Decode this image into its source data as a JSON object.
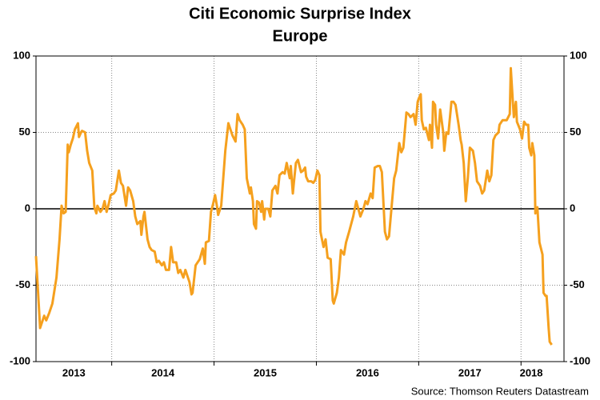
{
  "chart_data": {
    "type": "line",
    "title": "Citi Economic Surprise Index",
    "subtitle": "Europe",
    "source": "Source: Thomson Reuters Datastream",
    "color": "#f5a01e",
    "xlim": [
      2013.26,
      2018.42
    ],
    "xticks": [
      {
        "value": 2013.63,
        "label": "2013"
      },
      {
        "value": 2014.5,
        "label": "2014"
      },
      {
        "value": 2015.5,
        "label": "2015"
      },
      {
        "value": 2016.5,
        "label": "2016"
      },
      {
        "value": 2017.5,
        "label": "2017"
      },
      {
        "value": 2018.1,
        "label": "2018"
      }
    ],
    "year_lines": [
      2014,
      2015,
      2016,
      2017,
      2018
    ],
    "ylim": [
      -100,
      100
    ],
    "yticks": [
      -100,
      -50,
      0,
      50,
      100
    ],
    "y2lim": [
      -100,
      100
    ],
    "y2ticks": [
      -100,
      -50,
      0,
      50,
      100
    ],
    "grid": true,
    "x": [
      2013.26,
      2013.3,
      2013.34,
      2013.36,
      2013.39,
      2013.42,
      2013.46,
      2013.49,
      2013.51,
      2013.53,
      2013.55,
      2013.57,
      2013.58,
      2013.6,
      2013.62,
      2013.64,
      2013.67,
      2013.68,
      2013.7,
      2013.71,
      2013.74,
      2013.76,
      2013.78,
      2013.81,
      2013.83,
      2013.85,
      2013.86,
      2013.89,
      2013.91,
      2013.93,
      2013.95,
      2013.97,
      2013.99,
      2014.02,
      2014.04,
      2014.07,
      2014.09,
      2014.11,
      2014.14,
      2014.16,
      2014.18,
      2014.21,
      2014.23,
      2014.25,
      2014.28,
      2014.29,
      2014.31,
      2014.32,
      2014.35,
      2014.37,
      2014.39,
      2014.42,
      2014.44,
      2014.46,
      2014.49,
      2014.51,
      2014.53,
      2014.56,
      2014.58,
      2014.6,
      2014.63,
      2014.65,
      2014.67,
      2014.7,
      2014.72,
      2014.74,
      2014.76,
      2014.78,
      2014.79,
      2014.82,
      2014.84,
      2014.86,
      2014.89,
      2014.91,
      2014.92,
      2014.95,
      2014.97,
      2014.99,
      2015.01,
      2015.03,
      2015.04,
      2015.07,
      2015.09,
      2015.11,
      2015.14,
      2015.16,
      2015.18,
      2015.21,
      2015.23,
      2015.25,
      2015.28,
      2015.3,
      2015.32,
      2015.35,
      2015.36,
      2015.38,
      2015.39,
      2015.41,
      2015.42,
      2015.44,
      2015.46,
      2015.47,
      2015.49,
      2015.5,
      2015.53,
      2015.55,
      2015.57,
      2015.6,
      2015.62,
      2015.64,
      2015.67,
      2015.69,
      2015.71,
      2015.74,
      2015.75,
      2015.77,
      2015.78,
      2015.8,
      2015.82,
      2015.85,
      2015.87,
      2015.89,
      2015.9,
      2015.92,
      2015.95,
      2015.97,
      2015.99,
      2016.01,
      2016.03,
      2016.04,
      2016.07,
      2016.09,
      2016.11,
      2016.14,
      2016.16,
      2016.17,
      2016.2,
      2016.22,
      2016.24,
      2016.27,
      2016.29,
      2016.32,
      2016.34,
      2016.36,
      2016.39,
      2016.41,
      2016.43,
      2016.46,
      2016.48,
      2016.5,
      2016.53,
      2016.55,
      2016.57,
      2016.6,
      2016.62,
      2016.64,
      2016.67,
      2016.69,
      2016.71,
      2016.74,
      2016.76,
      2016.78,
      2016.81,
      2016.83,
      2016.85,
      2016.88,
      2016.9,
      2016.92,
      2016.95,
      2016.97,
      2016.99,
      2017.0,
      2017.02,
      2017.03,
      2017.05,
      2017.07,
      2017.1,
      2017.11,
      2017.13,
      2017.14,
      2017.16,
      2017.17,
      2017.19,
      2017.21,
      2017.22,
      2017.24,
      2017.25,
      2017.27,
      2017.29,
      2017.32,
      2017.34,
      2017.36,
      2017.39,
      2017.41,
      2017.42,
      2017.44,
      2017.46,
      2017.48,
      2017.5,
      2017.53,
      2017.55,
      2017.57,
      2017.6,
      2017.62,
      2017.64,
      2017.67,
      2017.69,
      2017.71,
      2017.73,
      2017.75,
      2017.78,
      2017.79,
      2017.82,
      2017.84,
      2017.86,
      2017.89,
      2017.9,
      2017.92,
      2017.93,
      2017.95,
      2017.96,
      2017.99,
      2018.01,
      2018.03,
      2018.05,
      2018.07,
      2018.08,
      2018.1,
      2018.11,
      2018.13,
      2018.14,
      2018.16,
      2018.18,
      2018.21,
      2018.22,
      2018.24,
      2018.25,
      2018.27,
      2018.28,
      2018.3
    ],
    "values": [
      -31,
      -78,
      -70,
      -73,
      -68,
      -62,
      -45,
      -20,
      2,
      -3,
      -2,
      42,
      37,
      42,
      46,
      52,
      56,
      47,
      50,
      51,
      50,
      38,
      30,
      25,
      1,
      -3,
      2,
      -2,
      0,
      5,
      -2,
      3,
      9,
      10,
      12,
      25,
      17,
      15,
      2,
      14,
      12,
      5,
      -5,
      -10,
      -8,
      -17,
      -5,
      -2,
      -20,
      -25,
      -27,
      -28,
      -35,
      -34,
      -37,
      -35,
      -40,
      -40,
      -25,
      -35,
      -35,
      -42,
      -40,
      -45,
      -40,
      -44,
      -48,
      -56,
      -55,
      -37,
      -35,
      -33,
      -26,
      -36,
      -22,
      -21,
      -2,
      3,
      9,
      1,
      -4,
      2,
      20,
      38,
      56,
      52,
      48,
      44,
      62,
      58,
      55,
      52,
      20,
      10,
      14,
      5,
      -10,
      -13,
      5,
      4,
      -2,
      5,
      -7,
      0,
      0,
      -5,
      12,
      15,
      10,
      22,
      24,
      23,
      30,
      20,
      28,
      10,
      17,
      30,
      32,
      24,
      25,
      27,
      21,
      18,
      18,
      17,
      19,
      25,
      22,
      -15,
      -25,
      -20,
      -32,
      -33,
      -60,
      -62,
      -55,
      -45,
      -27,
      -30,
      -22,
      -15,
      -10,
      -5,
      5,
      0,
      -5,
      0,
      5,
      3,
      10,
      7,
      27,
      28,
      28,
      24,
      -15,
      -20,
      -18,
      5,
      20,
      25,
      43,
      37,
      40,
      63,
      62,
      60,
      62,
      55,
      70,
      72,
      75,
      58,
      52,
      53,
      45,
      55,
      40,
      70,
      68,
      55,
      46,
      65,
      60,
      50,
      38,
      50,
      49,
      70,
      70,
      68,
      55,
      45,
      42,
      30,
      5,
      20,
      40,
      38,
      30,
      18,
      15,
      10,
      12,
      25,
      18,
      22,
      45,
      48,
      50,
      55,
      58,
      58,
      58,
      62,
      92,
      70,
      60,
      70,
      57,
      52,
      46,
      57,
      55,
      55,
      40,
      35,
      43,
      35,
      -3,
      1,
      -22,
      -30,
      -55,
      -57,
      -57,
      -78,
      -87,
      -89
    ]
  }
}
